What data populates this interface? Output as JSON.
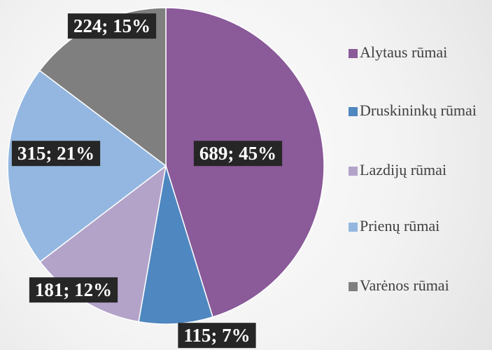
{
  "chart_data": {
    "type": "pie",
    "categories": [
      "Alytaus rūmai",
      "Druskininkų rūmai",
      "Lazdijų rūmai",
      "Prienų rūmai",
      "Varėnos rūmai"
    ],
    "values": [
      689,
      115,
      181,
      315,
      224
    ],
    "value_labels": [
      "689; 45%",
      "115; 7%",
      "181; 12%",
      "315; 21%",
      "224; 15%"
    ],
    "colors": [
      "#8a5a99",
      "#4f87c0",
      "#b3a3c9",
      "#93b7e0",
      "#7f7f7f"
    ],
    "legend": "right"
  }
}
